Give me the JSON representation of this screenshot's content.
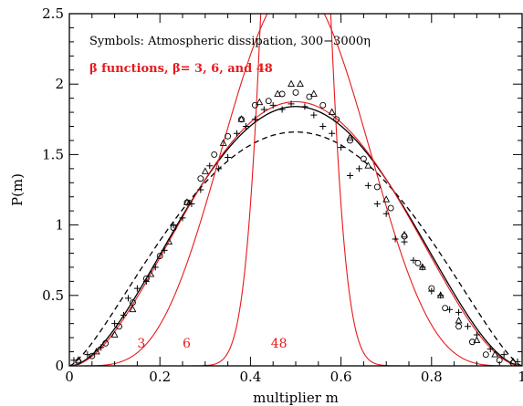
{
  "chart_data": {
    "type": "line",
    "xlabel": "multiplier m",
    "ylabel": "P(m)",
    "xlim": [
      0,
      1
    ],
    "ylim": [
      0,
      2.5
    ],
    "xticks": [
      0,
      0.2,
      0.4,
      0.6,
      0.8,
      1
    ],
    "xtick_labels": [
      "0",
      "0.2",
      "0.4",
      "0.6",
      "0.8",
      "1"
    ],
    "yticks": [
      0,
      0.5,
      1,
      1.5,
      2,
      2.5
    ],
    "ytick_labels": [
      "0",
      "0.5",
      "1",
      "1.5",
      "2",
      "2.5"
    ],
    "grid": false,
    "annotations": [
      {
        "text": "Symbols: Atmospheric dissipation, 300−3000η",
        "color": "#000000"
      },
      {
        "text": "β functions, β= 3, 6, and 48",
        "color": "#e8191c"
      }
    ],
    "curve_labels": [
      {
        "text": "3",
        "x": 0.15,
        "color": "#e8191c"
      },
      {
        "text": "6",
        "x": 0.25,
        "color": "#e8191c"
      },
      {
        "text": "48",
        "x": 0.445,
        "color": "#e8191c"
      }
    ],
    "beta_functions": [
      {
        "beta": 3,
        "color": "#e8191c"
      },
      {
        "beta": 6,
        "color": "#e8191c"
      },
      {
        "beta": 48,
        "color": "#e8191c"
      }
    ],
    "black_curves": [
      {
        "style": "solid",
        "color": "#000000",
        "beta": 2.9
      },
      {
        "style": "dashed",
        "color": "#000000",
        "beta": 2.4
      }
    ],
    "symbol_series": [
      {
        "marker": "circle",
        "x": [
          0.02,
          0.05,
          0.08,
          0.11,
          0.14,
          0.17,
          0.2,
          0.23,
          0.26,
          0.29,
          0.32,
          0.35,
          0.38,
          0.41,
          0.44,
          0.47,
          0.5,
          0.53,
          0.56,
          0.59,
          0.62,
          0.65,
          0.68,
          0.71,
          0.74,
          0.77,
          0.8,
          0.83,
          0.86,
          0.89,
          0.92,
          0.95,
          0.98
        ],
        "y": [
          0.03,
          0.07,
          0.16,
          0.28,
          0.45,
          0.62,
          0.78,
          0.98,
          1.16,
          1.33,
          1.5,
          1.63,
          1.75,
          1.85,
          1.88,
          1.93,
          1.94,
          1.91,
          1.85,
          1.75,
          1.6,
          1.47,
          1.27,
          1.12,
          0.92,
          0.73,
          0.55,
          0.41,
          0.28,
          0.17,
          0.08,
          0.04,
          0.02
        ]
      },
      {
        "marker": "triangle",
        "x": [
          0.02,
          0.06,
          0.1,
          0.14,
          0.18,
          0.22,
          0.26,
          0.3,
          0.34,
          0.38,
          0.42,
          0.46,
          0.49,
          0.51,
          0.54,
          0.58,
          0.62,
          0.66,
          0.7,
          0.74,
          0.78,
          0.82,
          0.86,
          0.9,
          0.94,
          0.98
        ],
        "y": [
          0.04,
          0.1,
          0.22,
          0.4,
          0.65,
          0.88,
          1.16,
          1.38,
          1.58,
          1.75,
          1.87,
          1.93,
          2.0,
          2.0,
          1.93,
          1.8,
          1.62,
          1.42,
          1.18,
          0.93,
          0.7,
          0.5,
          0.32,
          0.18,
          0.08,
          0.03
        ]
      },
      {
        "marker": "plus",
        "x": [
          0.01,
          0.04,
          0.07,
          0.1,
          0.12,
          0.13,
          0.15,
          0.17,
          0.19,
          0.21,
          0.23,
          0.25,
          0.27,
          0.29,
          0.31,
          0.33,
          0.35,
          0.37,
          0.39,
          0.41,
          0.43,
          0.45,
          0.47,
          0.49,
          0.52,
          0.54,
          0.56,
          0.58,
          0.6,
          0.62,
          0.64,
          0.66,
          0.68,
          0.7,
          0.72,
          0.74,
          0.76,
          0.78,
          0.8,
          0.82,
          0.84,
          0.86,
          0.88,
          0.9,
          0.93,
          0.96,
          0.99
        ],
        "y": [
          0.04,
          0.08,
          0.13,
          0.3,
          0.36,
          0.48,
          0.55,
          0.6,
          0.7,
          0.82,
          1.0,
          1.05,
          1.15,
          1.25,
          1.42,
          1.4,
          1.48,
          1.65,
          1.7,
          1.75,
          1.82,
          1.85,
          1.82,
          1.86,
          1.84,
          1.78,
          1.7,
          1.65,
          1.55,
          1.35,
          1.4,
          1.28,
          1.15,
          1.08,
          0.9,
          0.88,
          0.75,
          0.7,
          0.53,
          0.5,
          0.4,
          0.38,
          0.28,
          0.22,
          0.12,
          0.08,
          0.03
        ]
      }
    ]
  }
}
